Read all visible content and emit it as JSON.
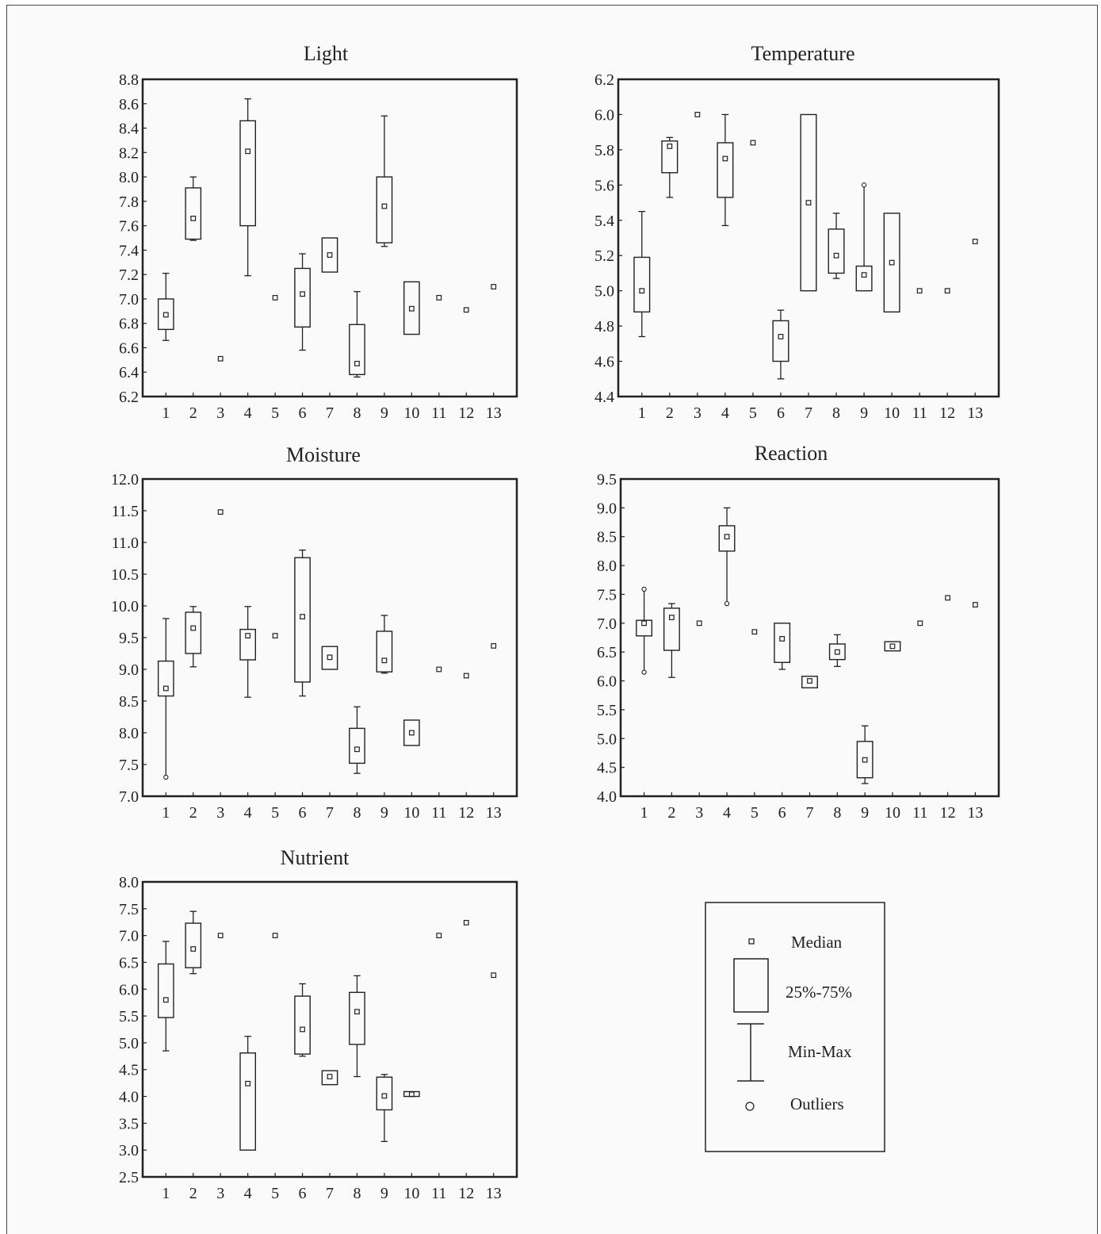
{
  "chart_data": [
    {
      "type": "box",
      "title": "Light",
      "categories": [
        "1",
        "2",
        "3",
        "4",
        "5",
        "6",
        "7",
        "8",
        "9",
        "10",
        "11",
        "12",
        "13"
      ],
      "ylim": [
        6.2,
        8.8
      ],
      "yticks": [
        "6.2",
        "6.4",
        "6.6",
        "6.8",
        "7.0",
        "7.2",
        "7.4",
        "7.6",
        "7.8",
        "8.0",
        "8.2",
        "8.4",
        "8.6",
        "8.8"
      ],
      "boxes": [
        {
          "median": 6.87,
          "q1": 6.75,
          "q3": 7.0,
          "min": 6.66,
          "max": 7.21
        },
        {
          "median": 7.66,
          "q1": 7.49,
          "q3": 7.91,
          "min": 7.48,
          "max": 8.0
        },
        {
          "median": 6.51
        },
        {
          "median": 8.21,
          "q1": 7.6,
          "q3": 8.46,
          "min": 7.19,
          "max": 8.64
        },
        {
          "median": 7.01
        },
        {
          "median": 7.04,
          "q1": 6.77,
          "q3": 7.25,
          "min": 6.58,
          "max": 7.37
        },
        {
          "median": 7.36,
          "q1": 7.22,
          "q3": 7.5
        },
        {
          "median": 6.47,
          "q1": 6.38,
          "q3": 6.79,
          "min": 6.36,
          "max": 7.06
        },
        {
          "median": 7.76,
          "q1": 7.46,
          "q3": 8.0,
          "min": 7.43,
          "max": 8.5
        },
        {
          "median": 6.92,
          "q1": 6.71,
          "q3": 7.14
        },
        {
          "median": 7.01
        },
        {
          "median": 6.91
        },
        {
          "median": 7.1
        }
      ]
    },
    {
      "type": "box",
      "title": "Temperature",
      "categories": [
        "1",
        "2",
        "3",
        "4",
        "5",
        "6",
        "7",
        "8",
        "9",
        "10",
        "11",
        "12",
        "13"
      ],
      "ylim": [
        4.4,
        6.2
      ],
      "yticks": [
        "4.4",
        "4.6",
        "4.8",
        "5.0",
        "5.2",
        "5.4",
        "5.6",
        "5.8",
        "6.0",
        "6.2"
      ],
      "boxes": [
        {
          "median": 5.0,
          "q1": 4.88,
          "q3": 5.19,
          "min": 4.74,
          "max": 5.45
        },
        {
          "median": 5.82,
          "q1": 5.67,
          "q3": 5.85,
          "min": 5.53,
          "max": 5.87
        },
        {
          "median": 6.0
        },
        {
          "median": 5.75,
          "q1": 5.53,
          "q3": 5.84,
          "min": 5.37,
          "max": 6.0
        },
        {
          "median": 5.84
        },
        {
          "median": 4.74,
          "q1": 4.6,
          "q3": 4.83,
          "min": 4.5,
          "max": 4.89
        },
        {
          "median": 5.5,
          "q1": 5.0,
          "q3": 6.0
        },
        {
          "median": 5.2,
          "q1": 5.1,
          "q3": 5.35,
          "min": 5.07,
          "max": 5.44
        },
        {
          "median": 5.09,
          "q1": 5.0,
          "q3": 5.14,
          "max": 5.6,
          "outliers_high": [
            5.6
          ]
        },
        {
          "median": 5.16,
          "q1": 4.88,
          "q3": 5.44
        },
        {
          "median": 5.0
        },
        {
          "median": 5.0
        },
        {
          "median": 5.28
        }
      ]
    },
    {
      "type": "box",
      "title": "Moisture",
      "categories": [
        "1",
        "2",
        "3",
        "4",
        "5",
        "6",
        "7",
        "8",
        "9",
        "10",
        "11",
        "12",
        "13"
      ],
      "ylim": [
        7.0,
        12.0
      ],
      "yticks": [
        "7.0",
        "7.5",
        "8.0",
        "8.5",
        "9.0",
        "9.5",
        "10.0",
        "10.5",
        "11.0",
        "11.5",
        "12.0"
      ],
      "boxes": [
        {
          "median": 8.7,
          "q1": 8.58,
          "q3": 9.13,
          "min": 7.3,
          "max": 9.8,
          "outliers_low": [
            7.3
          ]
        },
        {
          "median": 9.65,
          "q1": 9.25,
          "q3": 9.9,
          "min": 9.04,
          "max": 9.99
        },
        {
          "median": 11.48
        },
        {
          "median": 9.53,
          "q1": 9.15,
          "q3": 9.63,
          "min": 8.56,
          "max": 9.99
        },
        {
          "median": 9.53
        },
        {
          "median": 9.83,
          "q1": 8.8,
          "q3": 10.76,
          "min": 8.58,
          "max": 10.88
        },
        {
          "median": 9.19,
          "q1": 9.0,
          "q3": 9.36
        },
        {
          "median": 7.74,
          "q1": 7.52,
          "q3": 8.07,
          "min": 7.36,
          "max": 8.41
        },
        {
          "median": 9.14,
          "q1": 8.96,
          "q3": 9.6,
          "min": 8.94,
          "max": 9.85
        },
        {
          "median": 8.0,
          "q1": 7.8,
          "q3": 8.2
        },
        {
          "median": 9.0
        },
        {
          "median": 8.9
        },
        {
          "median": 9.37
        }
      ]
    },
    {
      "type": "box",
      "title": "Reaction",
      "categories": [
        "1",
        "2",
        "3",
        "4",
        "5",
        "6",
        "7",
        "8",
        "9",
        "10",
        "11",
        "12",
        "13"
      ],
      "ylim": [
        4.0,
        9.5
      ],
      "yticks": [
        "4.0",
        "4.5",
        "5.0",
        "5.5",
        "6.0",
        "6.5",
        "7.0",
        "7.5",
        "8.0",
        "8.5",
        "9.0",
        "9.5"
      ],
      "boxes": [
        {
          "median": 7.0,
          "q1": 6.78,
          "q3": 7.05,
          "min": 6.15,
          "max": 7.59,
          "outliers_low": [
            6.15
          ],
          "outliers_high": [
            7.59
          ]
        },
        {
          "median": 7.1,
          "q1": 6.53,
          "q3": 7.26,
          "min": 6.06,
          "max": 7.34
        },
        {
          "median": 7.0
        },
        {
          "median": 8.5,
          "q1": 8.25,
          "q3": 8.69,
          "min": 7.34,
          "max": 9.0,
          "outliers_low": [
            7.34
          ]
        },
        {
          "median": 6.85
        },
        {
          "median": 6.73,
          "q1": 6.32,
          "q3": 7.0,
          "min": 6.2
        },
        {
          "median": 6.0,
          "q1": 5.88,
          "q3": 6.08
        },
        {
          "median": 6.5,
          "q1": 6.37,
          "q3": 6.64,
          "min": 6.25,
          "max": 6.8
        },
        {
          "median": 4.63,
          "q1": 4.32,
          "q3": 4.95,
          "min": 4.22,
          "max": 5.22
        },
        {
          "median": 6.6,
          "q1": 6.52,
          "q3": 6.68
        },
        {
          "median": 7.0
        },
        {
          "median": 7.44
        },
        {
          "median": 7.32
        }
      ]
    },
    {
      "type": "box",
      "title": "Nutrient",
      "categories": [
        "1",
        "2",
        "3",
        "4",
        "5",
        "6",
        "7",
        "8",
        "9",
        "10",
        "11",
        "12",
        "13"
      ],
      "ylim": [
        2.5,
        8.0
      ],
      "yticks": [
        "2.5",
        "3.0",
        "3.5",
        "4.0",
        "4.5",
        "5.0",
        "5.5",
        "6.0",
        "6.5",
        "7.0",
        "7.5",
        "8.0"
      ],
      "boxes": [
        {
          "median": 5.8,
          "q1": 5.47,
          "q3": 6.47,
          "min": 4.85,
          "max": 6.89
        },
        {
          "median": 6.75,
          "q1": 6.4,
          "q3": 7.23,
          "min": 6.29,
          "max": 7.45
        },
        {
          "median": 7.0
        },
        {
          "median": 4.24,
          "q1": 3.0,
          "q3": 4.81,
          "max": 5.12
        },
        {
          "median": 7.0
        },
        {
          "median": 5.25,
          "q1": 4.79,
          "q3": 5.87,
          "min": 4.75,
          "max": 6.1
        },
        {
          "median": 4.37,
          "q1": 4.22,
          "q3": 4.48
        },
        {
          "median": 5.58,
          "q1": 4.97,
          "q3": 5.94,
          "min": 4.37,
          "max": 6.25
        },
        {
          "median": 4.01,
          "q1": 3.75,
          "q3": 4.36,
          "min": 3.16,
          "max": 4.41
        },
        {
          "median": 4.04,
          "q1": 4.0,
          "q3": 4.09
        },
        {
          "median": 7.0
        },
        {
          "median": 7.24
        },
        {
          "median": 6.26
        }
      ]
    }
  ],
  "legend": {
    "median": "Median",
    "box": "25%-75%",
    "whisker": "Min-Max",
    "outlier": "Outliers"
  }
}
